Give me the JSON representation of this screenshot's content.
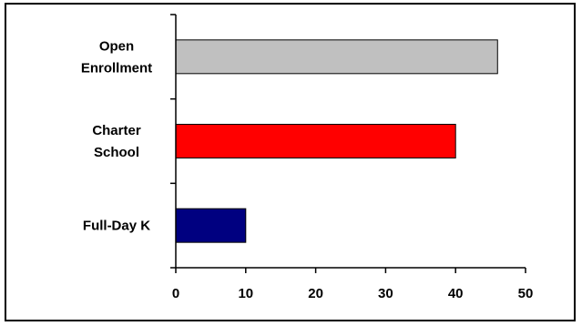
{
  "chart_data": {
    "type": "bar",
    "orientation": "horizontal",
    "categories": [
      "Open Enrollment",
      "Charter School",
      "Full-Day K"
    ],
    "category_label_lines": [
      [
        "Open",
        "Enrollment"
      ],
      [
        "Charter",
        "School"
      ],
      [
        "Full-Day K"
      ]
    ],
    "values": [
      46,
      40,
      10
    ],
    "colors": [
      "#c0c0c0",
      "#ff0000",
      "#000080"
    ],
    "xlim": [
      0,
      50
    ],
    "xticks": [
      0,
      10,
      20,
      30,
      40,
      50
    ],
    "title": "",
    "xlabel": "",
    "ylabel": "",
    "grid": false,
    "legend": "none"
  }
}
